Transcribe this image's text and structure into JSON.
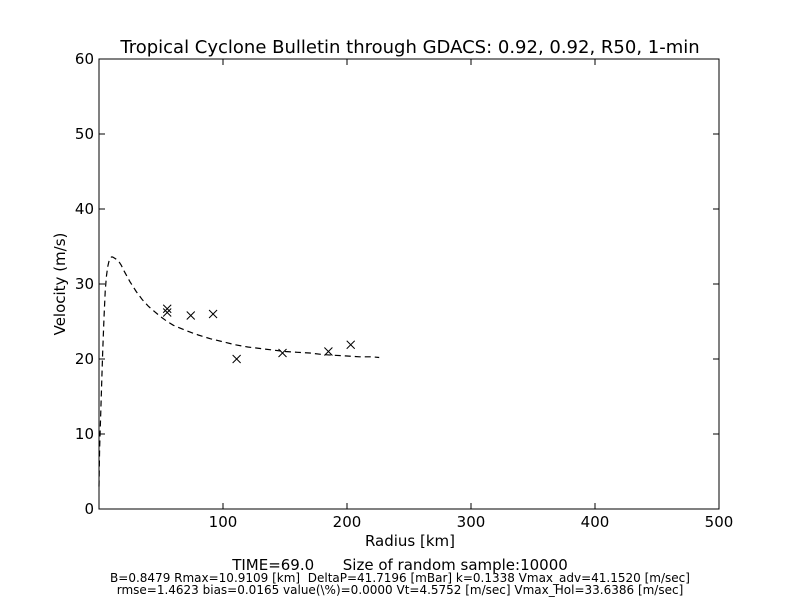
{
  "chart_data": {
    "type": "scatter",
    "title": "Tropical Cyclone Bulletin through GDACS: 0.92, 0.92, R50, 1-min",
    "xlabel": "Radius [km]",
    "ylabel": "Velocity (m/s)",
    "xlim": [
      0,
      500
    ],
    "ylim": [
      0,
      60
    ],
    "xticks": [
      100,
      200,
      300,
      400,
      500
    ],
    "yticks": [
      0,
      10,
      20,
      30,
      40,
      50,
      60
    ],
    "grid": false,
    "series": [
      {
        "style": "dashed-line",
        "color": "#000000",
        "x": [
          0,
          0.5,
          1,
          2,
          3,
          4,
          5,
          6,
          7,
          8,
          9,
          10,
          11,
          12,
          14,
          16,
          18,
          20,
          25,
          30,
          35,
          40,
          45,
          50,
          55,
          60,
          70,
          80,
          90,
          100,
          110,
          120,
          130,
          140,
          150,
          160,
          170,
          180,
          190,
          200,
          210,
          220,
          226
        ],
        "y": [
          3,
          8,
          10.5,
          16,
          21,
          25.5,
          29,
          31,
          32.3,
          33.0,
          33.4,
          33.6,
          33.6,
          33.5,
          33.3,
          33.0,
          32.5,
          31.8,
          30.3,
          29.0,
          27.9,
          27.0,
          26.3,
          25.6,
          25.0,
          24.5,
          23.8,
          23.2,
          22.7,
          22.3,
          21.9,
          21.6,
          21.4,
          21.2,
          21.0,
          20.9,
          20.8,
          20.6,
          20.5,
          20.4,
          20.3,
          20.3,
          20.2
        ]
      },
      {
        "style": "x-marker",
        "color": "#000000",
        "x": [
          55,
          55,
          74,
          92,
          111,
          148,
          185,
          203
        ],
        "y": [
          26.7,
          26.2,
          25.8,
          26.0,
          20.0,
          20.8,
          21.0,
          21.9
        ]
      }
    ]
  },
  "footer": {
    "line1": "TIME=69.0      Size of random sample:10000",
    "line2": "B=0.8479 Rmax=10.9109 [km]  DeltaP=41.7196 [mBar] k=0.1338 Vmax_adv=41.1520 [m/sec]",
    "line3": "rmse=1.4623 bias=0.0165 value(\\%)=0.0000 Vt=4.5752 [m/sec] Vmax_Hol=33.6386 [m/sec]"
  }
}
